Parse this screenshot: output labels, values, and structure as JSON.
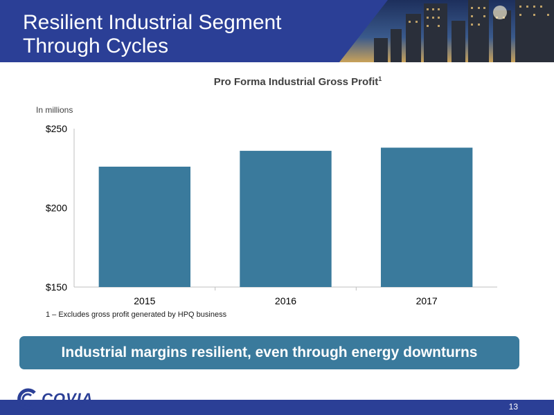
{
  "slide": {
    "title_line1": "Resilient Industrial Segment",
    "title_line2": "Through Cycles",
    "units_label": "In millions",
    "footnote": "1 – Excludes gross profit generated by HPQ business",
    "banner_text": "Industrial margins resilient, even through energy downturns",
    "logo_text": "COVIA",
    "page_number": "13"
  },
  "colors": {
    "header": "#2b3f96",
    "bar": "#3a7a9c",
    "banner": "#3a7a9c"
  },
  "chart_data": {
    "type": "bar",
    "title": "Pro Forma Industrial Gross Profit",
    "title_superscript": "1",
    "categories": [
      "2015",
      "2016",
      "2017"
    ],
    "values": [
      226,
      236,
      238
    ],
    "ylim": [
      150,
      250
    ],
    "yticks": [
      150,
      200,
      250
    ],
    "ytick_labels": [
      "$150",
      "$200",
      "$250"
    ],
    "grid": false
  }
}
